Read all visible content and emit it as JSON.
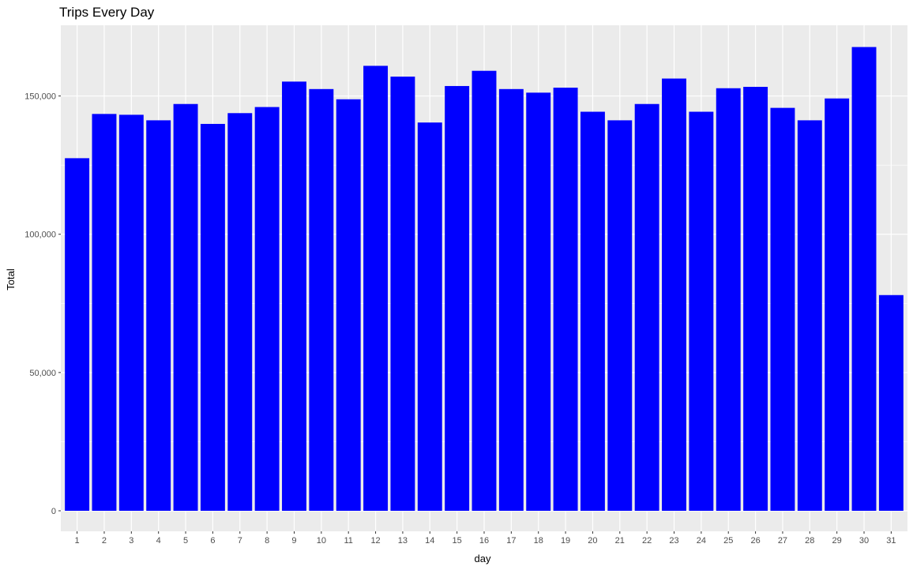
{
  "chart_data": {
    "type": "bar",
    "title": "Trips Every Day",
    "xlabel": "day",
    "ylabel": "Total",
    "categories": [
      "1",
      "2",
      "3",
      "4",
      "5",
      "6",
      "7",
      "8",
      "9",
      "10",
      "11",
      "12",
      "13",
      "14",
      "15",
      "16",
      "17",
      "18",
      "19",
      "20",
      "21",
      "22",
      "23",
      "24",
      "25",
      "26",
      "27",
      "28",
      "29",
      "30",
      "31"
    ],
    "values": [
      127500,
      143500,
      143200,
      141200,
      147100,
      139900,
      143800,
      146000,
      155200,
      152500,
      148800,
      160900,
      157000,
      140400,
      153600,
      159100,
      152500,
      151200,
      153000,
      144300,
      141200,
      147100,
      156300,
      144300,
      152800,
      153300,
      145700,
      141200,
      149100,
      167700,
      78000
    ],
    "ylim": [
      0,
      175000
    ],
    "y_ticks": [
      0,
      50000,
      100000,
      150000
    ],
    "y_tick_labels": [
      "0",
      "50,000",
      "100,000",
      "150,000"
    ],
    "grid": true,
    "legend": "none",
    "colors": {
      "bar": "#0000ff",
      "panel_background": "#ebebeb",
      "grid_major": "#ffffff",
      "tick_text": "#4d4d4d",
      "tick_mark": "#333333"
    }
  }
}
